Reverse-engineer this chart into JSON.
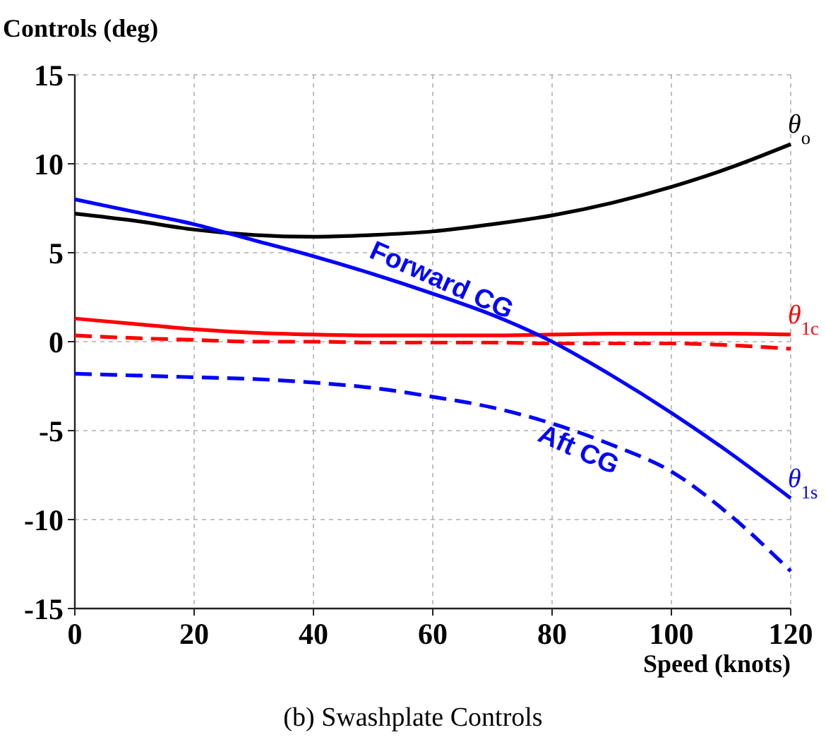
{
  "chart_data": {
    "type": "line",
    "title": "Controls (deg)",
    "xlabel": "Speed (knots)",
    "x": [
      0,
      10,
      20,
      30,
      40,
      50,
      60,
      70,
      80,
      90,
      100,
      110,
      120
    ],
    "series": [
      {
        "name": "θ$_{o}$",
        "color": "#000000",
        "line_style": "solid",
        "values": [
          7.2,
          6.8,
          6.3,
          6.0,
          5.9,
          6.0,
          6.2,
          6.6,
          7.1,
          7.8,
          8.7,
          9.8,
          11.1
        ]
      },
      {
        "name": "θ$_{1c}$",
        "color": "#ff0000",
        "line_style": "solid",
        "values": [
          1.3,
          1.0,
          0.7,
          0.5,
          0.4,
          0.35,
          0.35,
          0.35,
          0.4,
          0.45,
          0.45,
          0.45,
          0.4
        ]
      },
      {
        "color": "#ff0000",
        "line_style": "dashed",
        "values": [
          0.35,
          0.2,
          0.1,
          0.0,
          0.0,
          -0.05,
          -0.05,
          -0.05,
          -0.1,
          -0.1,
          -0.1,
          -0.2,
          -0.4
        ]
      },
      {
        "name": "θ$_{1s}$",
        "color": "#0000ff",
        "line_style": "solid",
        "values": [
          8.0,
          7.3,
          6.6,
          5.7,
          4.8,
          3.8,
          2.7,
          1.5,
          0.0,
          -1.9,
          -4.0,
          -6.3,
          -8.8
        ]
      },
      {
        "color": "#0000ff",
        "line_style": "dashed",
        "values": [
          -1.8,
          -1.9,
          -2.0,
          -2.1,
          -2.3,
          -2.6,
          -3.1,
          -3.7,
          -4.6,
          -5.8,
          -7.3,
          -9.8,
          -12.9
        ]
      }
    ],
    "xlim": [
      0,
      120
    ],
    "xticks": [
      0,
      20,
      40,
      60,
      80,
      100,
      120
    ],
    "ylim": [
      -15,
      15
    ],
    "yticks": [
      -15,
      -10,
      -5,
      0,
      5,
      10,
      15
    ],
    "grid": true,
    "marker": "none",
    "annotations": [
      "Forward CG",
      "Aft CG",
      "(b) Swashplate Controls"
    ]
  }
}
